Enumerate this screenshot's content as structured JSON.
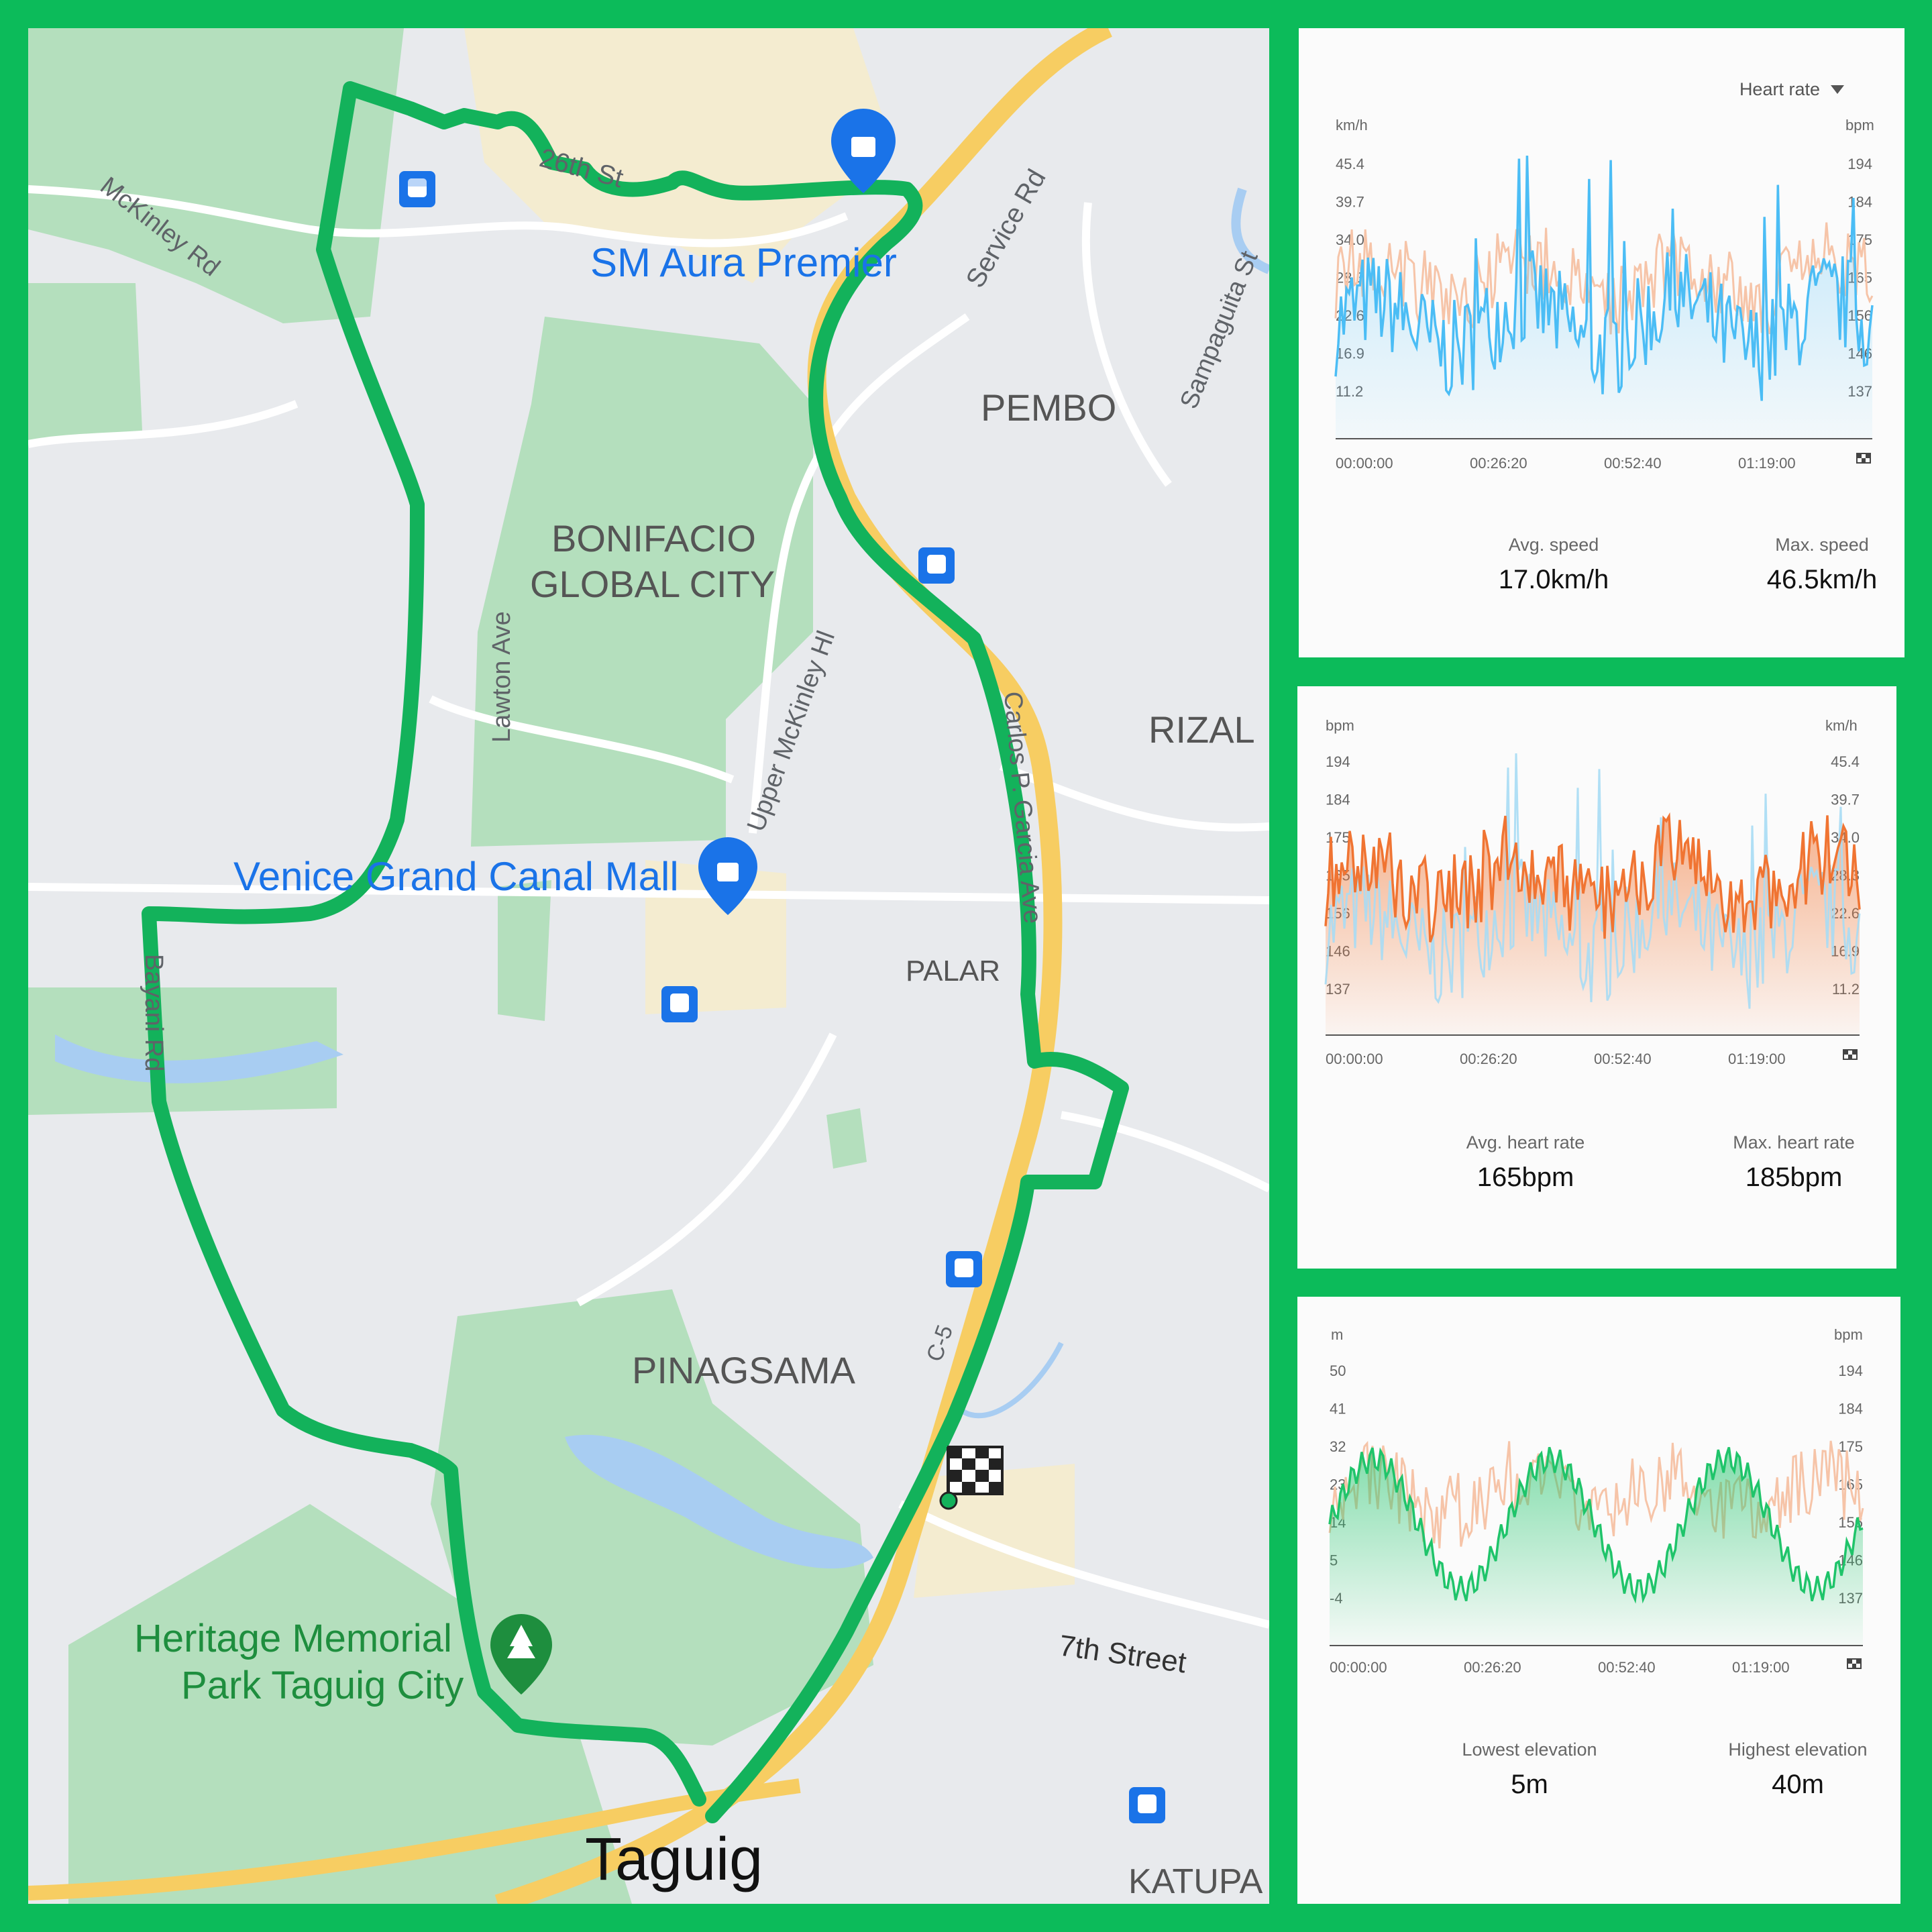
{
  "colors": {
    "frame": "#0cbb5a",
    "route": "#13b25b",
    "highway": "#f7cd62",
    "park": "#b4dfbd",
    "water": "#a8cdf2",
    "speed_series": "#4bbdf5",
    "heart_series": "#f07432",
    "elevation_series": "#1fc46a",
    "ghost_heart": "#f6c4a8",
    "ghost_speed": "#a7dbf4"
  },
  "map": {
    "labels": {
      "st26": "26th St",
      "mckinley_rd": "McKinley Rd",
      "sm_aura": "SM Aura Premier",
      "service_rd": "Service Rd",
      "sampaguita": "Sampaguita St",
      "pembo": "PEMBO",
      "bgc1": "BONIFACIO",
      "bgc2": "GLOBAL CITY",
      "lawton": "Lawton Ave",
      "upper_mckinley": "Upper McKinley Hl",
      "carlos": "Carlos P. Garcia Ave",
      "rizal": "RIZAL",
      "venice": "Venice Grand Canal Mall",
      "palar": "PALAR",
      "bayani": "Bayani Rd",
      "pinagsama": "PINAGSAMA",
      "c5": "C-5",
      "street7": "7th Street",
      "heritage1": "Heritage Memorial",
      "heritage2": "Park Taguig City",
      "taguig": "Taguig",
      "katupa": "KATUPA"
    },
    "icons": [
      "bus-stop-icon",
      "shopping-bag-icon",
      "tree-icon",
      "finish-flag-icon"
    ]
  },
  "speed_card": {
    "dropdown_label": "Heart rate",
    "left_unit": "km/h",
    "right_unit": "bpm",
    "left_ticks": [
      "45.4",
      "39.7",
      "34.0",
      "28.3",
      "22.6",
      "16.9",
      "11.2"
    ],
    "right_ticks": [
      "194",
      "184",
      "175",
      "165",
      "156",
      "146",
      "137"
    ],
    "x_ticks": [
      "00:00:00",
      "00:26:20",
      "00:52:40",
      "01:19:00"
    ],
    "avg_label": "Avg. speed",
    "avg_value": "17.0",
    "avg_unit": "km/h",
    "max_label": "Max. speed",
    "max_value": "46.5",
    "max_unit": "km/h"
  },
  "heart_card": {
    "left_unit": "bpm",
    "right_unit": "km/h",
    "left_ticks": [
      "194",
      "184",
      "175",
      "165",
      "156",
      "146",
      "137"
    ],
    "right_ticks": [
      "45.4",
      "39.7",
      "34.0",
      "28.3",
      "22.6",
      "16.9",
      "11.2"
    ],
    "x_ticks": [
      "00:00:00",
      "00:26:20",
      "00:52:40",
      "01:19:00"
    ],
    "avg_label": "Avg. heart rate",
    "avg_value": "165",
    "avg_unit": "bpm",
    "max_label": "Max. heart rate",
    "max_value": "185",
    "max_unit": "bpm"
  },
  "elev_card": {
    "left_unit": "m",
    "right_unit": "bpm",
    "left_ticks": [
      "50",
      "41",
      "32",
      "23",
      "14",
      "5",
      "-4"
    ],
    "right_ticks": [
      "194",
      "184",
      "175",
      "165",
      "156",
      "146",
      "137"
    ],
    "x_ticks": [
      "00:00:00",
      "00:26:20",
      "00:52:40",
      "01:19:00"
    ],
    "min_label": "Lowest elevation",
    "min_value": "5",
    "min_unit": "m",
    "max_label": "Highest elevation",
    "max_value": "40",
    "max_unit": "m"
  }
}
